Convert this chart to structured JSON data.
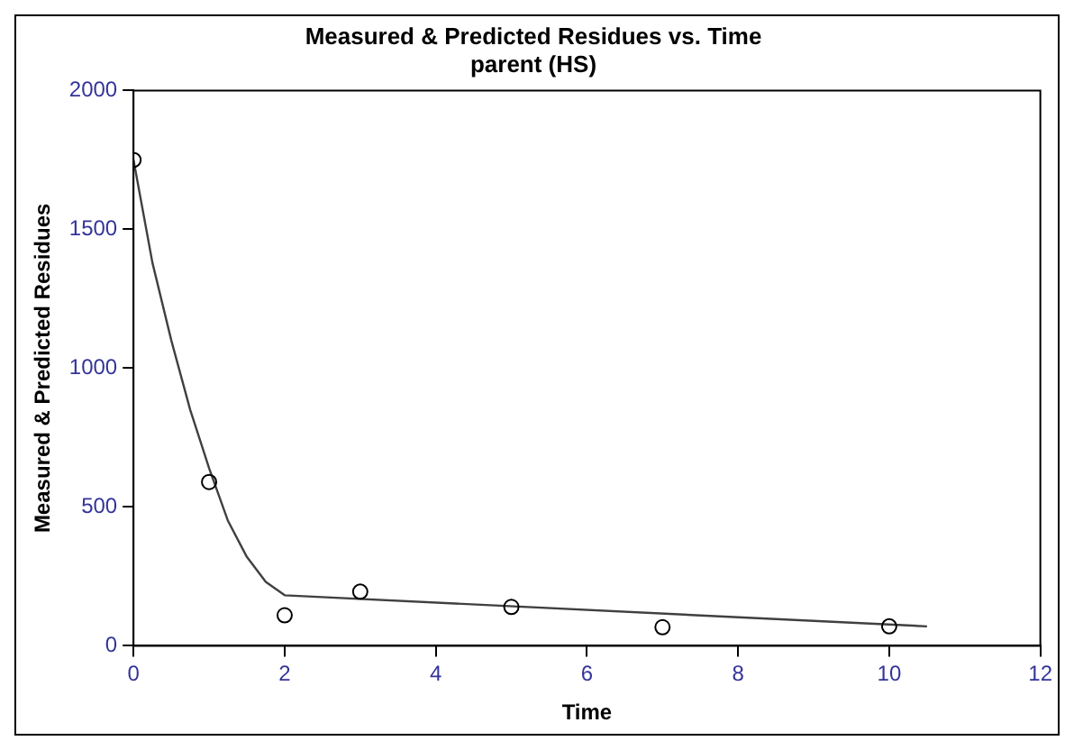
{
  "chart_data": {
    "type": "scatter",
    "title": "Measured & Predicted Residues vs. Time",
    "subtitle": "parent (HS)",
    "xlabel": "Time",
    "ylabel": "Measured & Predicted Residues",
    "xlim": [
      0,
      12
    ],
    "xticks": [
      0,
      2,
      4,
      6,
      8,
      10,
      12
    ],
    "ylim": [
      0,
      2000
    ],
    "yticks": [
      0,
      500,
      1000,
      1500,
      2000
    ],
    "grid": false,
    "legend": false,
    "series": [
      {
        "type": "scatter",
        "color": "#000000",
        "marker": "circle",
        "x": [
          0,
          1,
          2,
          3,
          5,
          7,
          10
        ],
        "values": [
          1750,
          590,
          110,
          195,
          140,
          67,
          70
        ]
      },
      {
        "type": "line",
        "color": "#404040",
        "marker": "none",
        "line_style": "solid",
        "x": [
          0,
          0.25,
          0.5,
          0.75,
          1,
          1.25,
          1.5,
          1.75,
          2,
          10.5
        ],
        "values": [
          1750,
          1380,
          1100,
          850,
          640,
          450,
          320,
          230,
          182,
          70
        ]
      }
    ]
  }
}
